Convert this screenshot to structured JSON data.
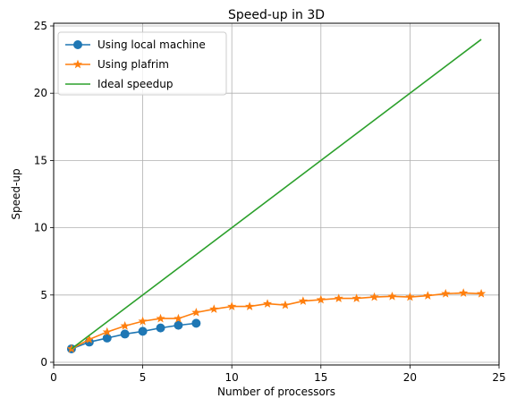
{
  "chart_data": {
    "type": "line",
    "title": "Speed-up in 3D",
    "xlabel": "Number of processors",
    "ylabel": "Speed-up",
    "xlim": [
      0,
      25
    ],
    "ylim": [
      -0.2,
      25.2
    ],
    "xticks": [
      0,
      5,
      10,
      15,
      20,
      25
    ],
    "yticks": [
      0,
      5,
      10,
      15,
      20,
      25
    ],
    "grid": true,
    "legend_position": "top-left",
    "series": [
      {
        "name": "Using local machine",
        "color": "#1f77b4",
        "marker": "circle",
        "x": [
          1,
          2,
          3,
          4,
          5,
          6,
          7,
          8
        ],
        "y": [
          1.0,
          1.5,
          1.8,
          2.1,
          2.3,
          2.55,
          2.75,
          2.9
        ]
      },
      {
        "name": "Using plafrim",
        "color": "#ff7f0e",
        "marker": "star",
        "x": [
          1,
          2,
          3,
          4,
          5,
          6,
          7,
          8,
          9,
          10,
          11,
          12,
          13,
          14,
          15,
          16,
          17,
          18,
          19,
          20,
          21,
          22,
          23,
          24
        ],
        "y": [
          1.0,
          1.7,
          2.25,
          2.7,
          3.05,
          3.25,
          3.25,
          3.7,
          3.95,
          4.15,
          4.15,
          4.35,
          4.25,
          4.55,
          4.65,
          4.75,
          4.75,
          4.85,
          4.9,
          4.85,
          4.95,
          5.1,
          5.15,
          5.1
        ]
      },
      {
        "name": "Ideal speedup",
        "color": "#2ca02c",
        "marker": "none",
        "x": [
          1,
          24
        ],
        "y": [
          1,
          24
        ]
      }
    ]
  }
}
